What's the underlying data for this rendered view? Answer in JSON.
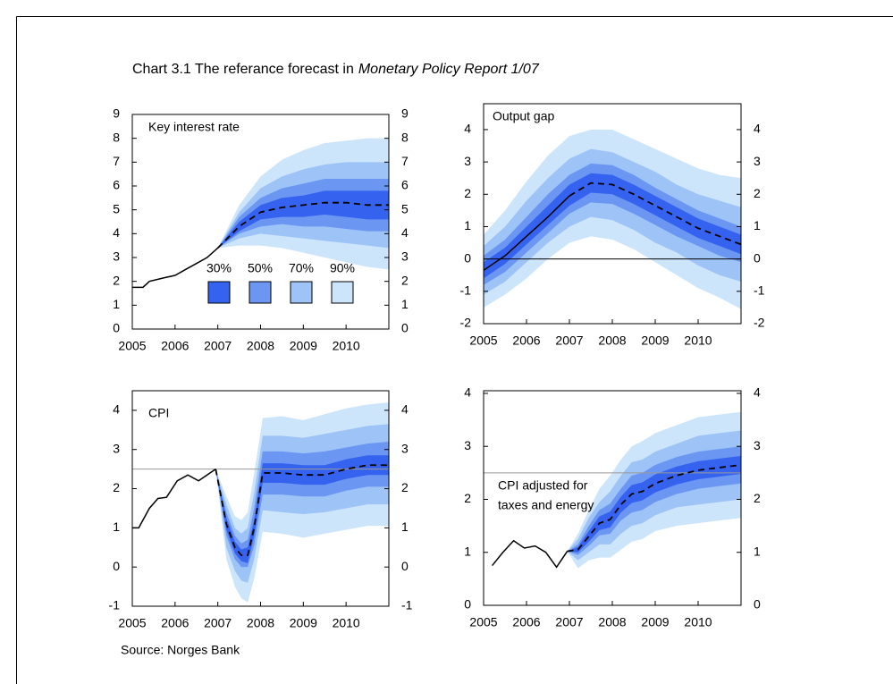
{
  "title": {
    "text": "Chart 3.1 The referance forecast in",
    "italic": "Monetary Policy Report 1/07"
  },
  "source": "Source: Norges Bank",
  "chart_data": [
    {
      "type": "fan",
      "title": "Key interest rate",
      "legend": "bottom",
      "xlim": [
        2005,
        2011
      ],
      "xticks": [
        2005,
        2006,
        2007,
        2008,
        2009,
        2010
      ],
      "ylim": [
        0,
        9
      ],
      "yticks": [
        0,
        1,
        2,
        3,
        4,
        5,
        6,
        7,
        8,
        9
      ],
      "history": {
        "x": [
          2005,
          2005.25,
          2005.4,
          2005.75,
          2006,
          2006.25,
          2006.5,
          2006.75,
          2007
        ],
        "values": [
          1.75,
          1.75,
          2.0,
          2.15,
          2.25,
          2.5,
          2.75,
          3.0,
          3.4
        ]
      },
      "x": [
        2007,
        2007.5,
        2008,
        2008.5,
        2009,
        2009.5,
        2010,
        2010.5,
        2011
      ],
      "median": [
        3.4,
        4.3,
        4.9,
        5.1,
        5.2,
        5.3,
        5.3,
        5.2,
        5.2
      ],
      "series": [
        {
          "name": "30%",
          "color": "#3563f0",
          "lower": [
            3.4,
            4.1,
            4.6,
            4.7,
            4.7,
            4.8,
            4.7,
            4.6,
            4.6
          ],
          "upper": [
            3.4,
            4.5,
            5.2,
            5.5,
            5.6,
            5.8,
            5.8,
            5.8,
            5.8
          ]
        },
        {
          "name": "50%",
          "color": "#6b96f2",
          "lower": [
            3.4,
            4.0,
            4.3,
            4.4,
            4.3,
            4.3,
            4.2,
            4.1,
            4.1
          ],
          "upper": [
            3.4,
            4.7,
            5.5,
            5.9,
            6.1,
            6.3,
            6.3,
            6.3,
            6.3
          ]
        },
        {
          "name": "70%",
          "color": "#9dc3f7",
          "lower": [
            3.4,
            3.8,
            4.0,
            3.9,
            3.8,
            3.7,
            3.6,
            3.5,
            3.4
          ],
          "upper": [
            3.4,
            4.9,
            5.9,
            6.4,
            6.7,
            6.9,
            7.0,
            7.0,
            7.0
          ]
        },
        {
          "name": "90%",
          "color": "#cde5fb",
          "lower": [
            3.4,
            3.5,
            3.5,
            3.4,
            3.2,
            3.0,
            2.8,
            2.6,
            2.5
          ],
          "upper": [
            3.4,
            5.2,
            6.4,
            7.1,
            7.5,
            7.8,
            7.9,
            8.0,
            8.0
          ]
        }
      ]
    },
    {
      "type": "fan",
      "title": "Output gap",
      "xlim": [
        2005,
        2011
      ],
      "xticks": [
        2005,
        2006,
        2007,
        2008,
        2009,
        2010
      ],
      "ylim": [
        -2,
        4.8
      ],
      "yticks": [
        -2,
        -1,
        0,
        1,
        2,
        3,
        4
      ],
      "hline": 0,
      "hline_color": "#000000",
      "history": {
        "x": [
          2005,
          2005.5,
          2006,
          2006.5,
          2007
        ],
        "values": [
          -0.35,
          0.1,
          0.7,
          1.3,
          1.95
        ]
      },
      "x": [
        2005,
        2005.5,
        2006,
        2006.5,
        2007,
        2007.5,
        2008,
        2008.5,
        2009,
        2009.5,
        2010,
        2010.5,
        2011
      ],
      "median": [
        null,
        null,
        null,
        null,
        1.95,
        2.35,
        2.3,
        2.0,
        1.65,
        1.3,
        0.95,
        0.7,
        0.45
      ],
      "series": [
        {
          "name": "30%",
          "color": "#3563f0",
          "lower": [
            -0.6,
            -0.15,
            0.45,
            1.05,
            1.65,
            2.05,
            2.0,
            1.7,
            1.35,
            1.0,
            0.65,
            0.4,
            0.15
          ],
          "upper": [
            -0.1,
            0.35,
            1.0,
            1.65,
            2.3,
            2.65,
            2.6,
            2.3,
            1.95,
            1.6,
            1.25,
            1.0,
            0.75
          ]
        },
        {
          "name": "50%",
          "color": "#6b96f2",
          "lower": [
            -0.8,
            -0.4,
            0.2,
            0.8,
            1.4,
            1.75,
            1.7,
            1.4,
            1.05,
            0.7,
            0.4,
            0.1,
            -0.1
          ],
          "upper": [
            0.1,
            0.6,
            1.3,
            2.0,
            2.6,
            2.95,
            2.9,
            2.6,
            2.2,
            1.85,
            1.5,
            1.25,
            1.0
          ]
        },
        {
          "name": "70%",
          "color": "#9dc3f7",
          "lower": [
            -1.1,
            -0.7,
            -0.1,
            0.5,
            1.0,
            1.3,
            1.2,
            0.9,
            0.5,
            0.2,
            -0.2,
            -0.5,
            -0.7
          ],
          "upper": [
            0.4,
            1.0,
            1.8,
            2.5,
            3.1,
            3.4,
            3.3,
            3.0,
            2.7,
            2.3,
            2.0,
            1.8,
            1.6
          ]
        },
        {
          "name": "90%",
          "color": "#cde5fb",
          "lower": [
            -1.5,
            -1.1,
            -0.6,
            0.0,
            0.5,
            0.7,
            0.6,
            0.3,
            -0.1,
            -0.5,
            -0.9,
            -1.2,
            -1.55
          ],
          "upper": [
            0.75,
            1.5,
            2.4,
            3.2,
            3.8,
            4.0,
            4.0,
            3.7,
            3.4,
            3.1,
            2.8,
            2.6,
            2.5
          ]
        }
      ]
    },
    {
      "type": "fan",
      "title": "CPI",
      "xlim": [
        2005,
        2011
      ],
      "xticks": [
        2005,
        2006,
        2007,
        2008,
        2009,
        2010
      ],
      "ylim": [
        -1,
        4.5
      ],
      "yticks": [
        -1,
        0,
        1,
        2,
        3,
        4
      ],
      "hline": 2.5,
      "hline_color": "#999999",
      "history": {
        "x": [
          2005,
          2005.15,
          2005.4,
          2005.6,
          2005.8,
          2006.05,
          2006.3,
          2006.55,
          2006.95
        ],
        "values": [
          1.0,
          1.0,
          1.5,
          1.75,
          1.78,
          2.2,
          2.35,
          2.2,
          2.5
        ]
      },
      "x": [
        2006.95,
        2007.2,
        2007.4,
        2007.55,
        2007.7,
        2007.85,
        2008.05,
        2008.5,
        2009,
        2009.5,
        2010,
        2010.5,
        2011
      ],
      "median": [
        2.5,
        1.1,
        0.5,
        0.3,
        0.3,
        1.0,
        2.4,
        2.4,
        2.35,
        2.35,
        2.5,
        2.6,
        2.6
      ],
      "series": [
        {
          "name": "30%",
          "color": "#3563f0",
          "lower": [
            2.5,
            0.95,
            0.35,
            0.15,
            0.1,
            0.8,
            2.15,
            2.15,
            2.1,
            2.1,
            2.25,
            2.35,
            2.35
          ],
          "upper": [
            2.5,
            1.25,
            0.65,
            0.45,
            0.5,
            1.2,
            2.65,
            2.65,
            2.6,
            2.6,
            2.75,
            2.85,
            2.85
          ]
        },
        {
          "name": "50%",
          "color": "#6b96f2",
          "lower": [
            2.5,
            0.8,
            0.2,
            0.0,
            0.0,
            0.55,
            1.85,
            1.85,
            1.8,
            1.8,
            1.95,
            2.05,
            2.05
          ],
          "upper": [
            2.5,
            1.4,
            0.8,
            0.6,
            0.7,
            1.5,
            2.95,
            2.95,
            2.9,
            2.95,
            3.05,
            3.15,
            3.2
          ]
        },
        {
          "name": "70%",
          "color": "#9dc3f7",
          "lower": [
            2.5,
            0.5,
            -0.1,
            -0.35,
            -0.4,
            0.2,
            1.45,
            1.4,
            1.35,
            1.4,
            1.5,
            1.6,
            1.6
          ],
          "upper": [
            2.5,
            1.6,
            1.0,
            0.85,
            1.0,
            1.9,
            3.35,
            3.35,
            3.3,
            3.4,
            3.5,
            3.6,
            3.65
          ]
        },
        {
          "name": "90%",
          "color": "#cde5fb",
          "lower": [
            2.5,
            0.2,
            -0.5,
            -0.8,
            -0.9,
            -0.3,
            0.9,
            0.85,
            0.75,
            0.85,
            0.95,
            1.05,
            1.05
          ],
          "upper": [
            2.5,
            1.8,
            1.3,
            1.2,
            1.4,
            2.4,
            3.8,
            3.85,
            3.75,
            3.9,
            4.05,
            4.15,
            4.2
          ]
        }
      ]
    },
    {
      "type": "fan",
      "title": [
        "CPI adjusted for",
        "taxes and energy"
      ],
      "xlim": [
        2005,
        2011
      ],
      "xticks": [
        2005,
        2006,
        2007,
        2008,
        2009,
        2010
      ],
      "ylim": [
        0,
        4.05
      ],
      "yticks": [
        0,
        1,
        2,
        3,
        4
      ],
      "hline": 2.5,
      "hline_color": "#999999",
      "history": {
        "x": [
          2005.2,
          2005.45,
          2005.7,
          2005.95,
          2006.2,
          2006.45,
          2006.7,
          2006.95
        ],
        "values": [
          0.75,
          1.0,
          1.22,
          1.08,
          1.12,
          1.0,
          0.72,
          1.02
        ]
      },
      "x": [
        2006.95,
        2007.2,
        2007.45,
        2007.7,
        2007.95,
        2008.2,
        2008.45,
        2008.7,
        2009,
        2009.5,
        2010,
        2010.5,
        2011
      ],
      "median": [
        1.02,
        1.05,
        1.3,
        1.55,
        1.62,
        1.9,
        2.1,
        2.15,
        2.3,
        2.45,
        2.55,
        2.6,
        2.65
      ],
      "series": [
        {
          "name": "30%",
          "color": "#3563f0",
          "lower": [
            1.02,
            1.0,
            1.2,
            1.42,
            1.47,
            1.75,
            1.93,
            1.98,
            2.13,
            2.28,
            2.38,
            2.43,
            2.48
          ],
          "upper": [
            1.02,
            1.1,
            1.4,
            1.68,
            1.77,
            2.05,
            2.27,
            2.32,
            2.47,
            2.62,
            2.72,
            2.77,
            2.82
          ]
        },
        {
          "name": "50%",
          "color": "#6b96f2",
          "lower": [
            1.02,
            0.95,
            1.12,
            1.32,
            1.35,
            1.6,
            1.75,
            1.8,
            1.95,
            2.1,
            2.2,
            2.25,
            2.3
          ],
          "upper": [
            1.02,
            1.15,
            1.5,
            1.8,
            1.92,
            2.2,
            2.45,
            2.5,
            2.65,
            2.8,
            2.9,
            2.95,
            3.0
          ]
        },
        {
          "name": "70%",
          "color": "#9dc3f7",
          "lower": [
            1.02,
            0.85,
            1.0,
            1.15,
            1.15,
            1.35,
            1.5,
            1.55,
            1.7,
            1.85,
            1.9,
            1.95,
            2.0
          ],
          "upper": [
            1.02,
            1.25,
            1.65,
            1.95,
            2.15,
            2.45,
            2.7,
            2.75,
            2.9,
            3.05,
            3.2,
            3.25,
            3.3
          ]
        },
        {
          "name": "90%",
          "color": "#cde5fb",
          "lower": [
            1.02,
            0.7,
            0.85,
            0.9,
            0.9,
            1.05,
            1.2,
            1.25,
            1.4,
            1.5,
            1.55,
            1.6,
            1.65
          ],
          "upper": [
            1.02,
            1.35,
            1.8,
            2.2,
            2.45,
            2.75,
            3.0,
            3.1,
            3.25,
            3.4,
            3.55,
            3.6,
            3.65
          ]
        }
      ]
    }
  ]
}
